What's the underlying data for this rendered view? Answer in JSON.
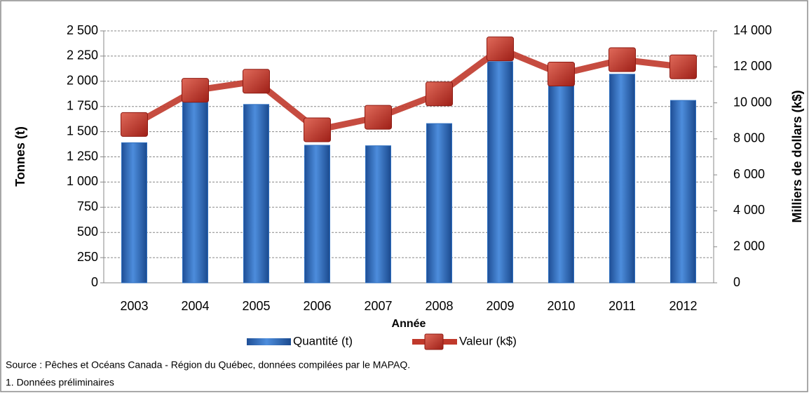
{
  "chart_data": {
    "type": "bar-line",
    "categories": [
      "2003",
      "2004",
      "2005",
      "2006",
      "2007",
      "2008",
      "2009",
      "2010",
      "2011",
      "2012"
    ],
    "series": [
      {
        "name": "Quantité (t)",
        "color": "#2e6fc0",
        "values": [
          1390,
          1790,
          1770,
          1365,
          1360,
          1580,
          2195,
          1960,
          2070,
          1810
        ]
      },
      {
        "name": "Valeur (k$)",
        "color": "#c0392b",
        "axis": "y2",
        "values": [
          8800,
          10700,
          11200,
          8500,
          9200,
          10500,
          13000,
          11600,
          12400,
          12000
        ]
      }
    ],
    "x_label": "Année",
    "y_label": "Tonnes (t)",
    "y2_label": "Milliers de dollars (k$)",
    "ylim": [
      0,
      2500
    ],
    "yticks": [
      0,
      250,
      500,
      750,
      {
        "value": 1000,
        "label": "1 000"
      },
      {
        "value": 1250,
        "label": "1 250"
      },
      {
        "value": 1500,
        "label": "1 500"
      },
      {
        "value": 1750,
        "label": "1 750"
      },
      {
        "value": 2000,
        "label": "2 000"
      },
      {
        "value": 2250,
        "label": "2 250"
      },
      {
        "value": 2500,
        "label": "2 500"
      }
    ],
    "y2lim": [
      0,
      14000
    ],
    "y2ticks": [
      0,
      {
        "value": 2000,
        "label": "2 000"
      },
      {
        "value": 4000,
        "label": "4 000"
      },
      {
        "value": 6000,
        "label": "6 000"
      },
      {
        "value": 8000,
        "label": "8 000"
      },
      {
        "value": 10000,
        "label": "10 000"
      },
      {
        "value": 12000,
        "label": "12 000"
      },
      {
        "value": 14000,
        "label": "14 000"
      }
    ],
    "grid": true,
    "notes": [
      "Source : Pêches et Océans Canada - Région du Québec, données compilées par le MAPAQ.",
      "1. Données préliminaires"
    ]
  }
}
